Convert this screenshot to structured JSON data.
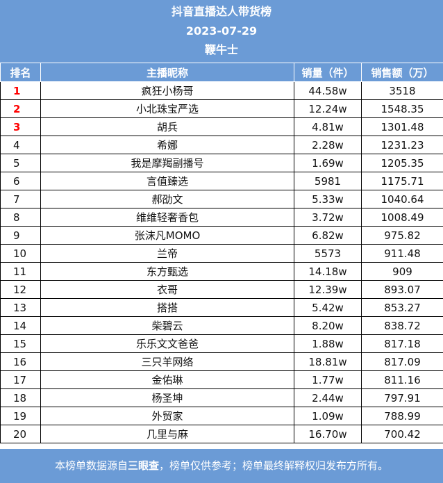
{
  "header": {
    "title": "抖音直播达人带货榜",
    "date": "2023-07-29",
    "brand": "鞭牛士"
  },
  "columns": [
    "排名",
    "主播昵称",
    "销量（件）",
    "销售额（万）"
  ],
  "rows": [
    {
      "rank": "1",
      "name": "疯狂小杨哥",
      "sales": "44.58w",
      "revenue": "3518"
    },
    {
      "rank": "2",
      "name": "小北珠宝严选",
      "sales": "12.24w",
      "revenue": "1548.35"
    },
    {
      "rank": "3",
      "name": "胡兵",
      "sales": "4.81w",
      "revenue": "1301.48"
    },
    {
      "rank": "4",
      "name": "希娜",
      "sales": "2.28w",
      "revenue": "1231.23"
    },
    {
      "rank": "5",
      "name": "我是摩羯副播号",
      "sales": "1.69w",
      "revenue": "1205.35"
    },
    {
      "rank": "6",
      "name": "言值臻选",
      "sales": "5981",
      "revenue": "1175.71"
    },
    {
      "rank": "7",
      "name": "郝劭文",
      "sales": "5.33w",
      "revenue": "1040.64"
    },
    {
      "rank": "8",
      "name": "维维轻奢香包",
      "sales": "3.72w",
      "revenue": "1008.49"
    },
    {
      "rank": "9",
      "name": "张沫凡MOMO",
      "sales": "6.82w",
      "revenue": "975.82"
    },
    {
      "rank": "10",
      "name": "兰帝",
      "sales": "5573",
      "revenue": "911.48"
    },
    {
      "rank": "11",
      "name": "东方甄选",
      "sales": "14.18w",
      "revenue": "909"
    },
    {
      "rank": "12",
      "name": "衣哥",
      "sales": "12.39w",
      "revenue": "893.07"
    },
    {
      "rank": "13",
      "name": "搭搭",
      "sales": "5.42w",
      "revenue": "853.27"
    },
    {
      "rank": "14",
      "name": "柴碧云",
      "sales": "8.20w",
      "revenue": "838.72"
    },
    {
      "rank": "15",
      "name": "乐乐文文爸爸",
      "sales": "1.88w",
      "revenue": "817.18"
    },
    {
      "rank": "16",
      "name": "三只羊网络",
      "sales": "18.81w",
      "revenue": "817.09"
    },
    {
      "rank": "17",
      "name": "金佑琳",
      "sales": "1.77w",
      "revenue": "811.16"
    },
    {
      "rank": "18",
      "name": "杨圣坤",
      "sales": "2.44w",
      "revenue": "797.91"
    },
    {
      "rank": "19",
      "name": "外贸家",
      "sales": "1.09w",
      "revenue": "788.99"
    },
    {
      "rank": "20",
      "name": "几里与麻",
      "sales": "16.70w",
      "revenue": "700.42"
    }
  ],
  "footer": {
    "prefix": "本榜单数据源自",
    "source": "三眼查",
    "suffix": "，榜单仅供参考；榜单最终解释权归发布方所有。"
  },
  "colors": {
    "header_bg": "#6b9bd6",
    "top_rank": "#ff0000"
  }
}
